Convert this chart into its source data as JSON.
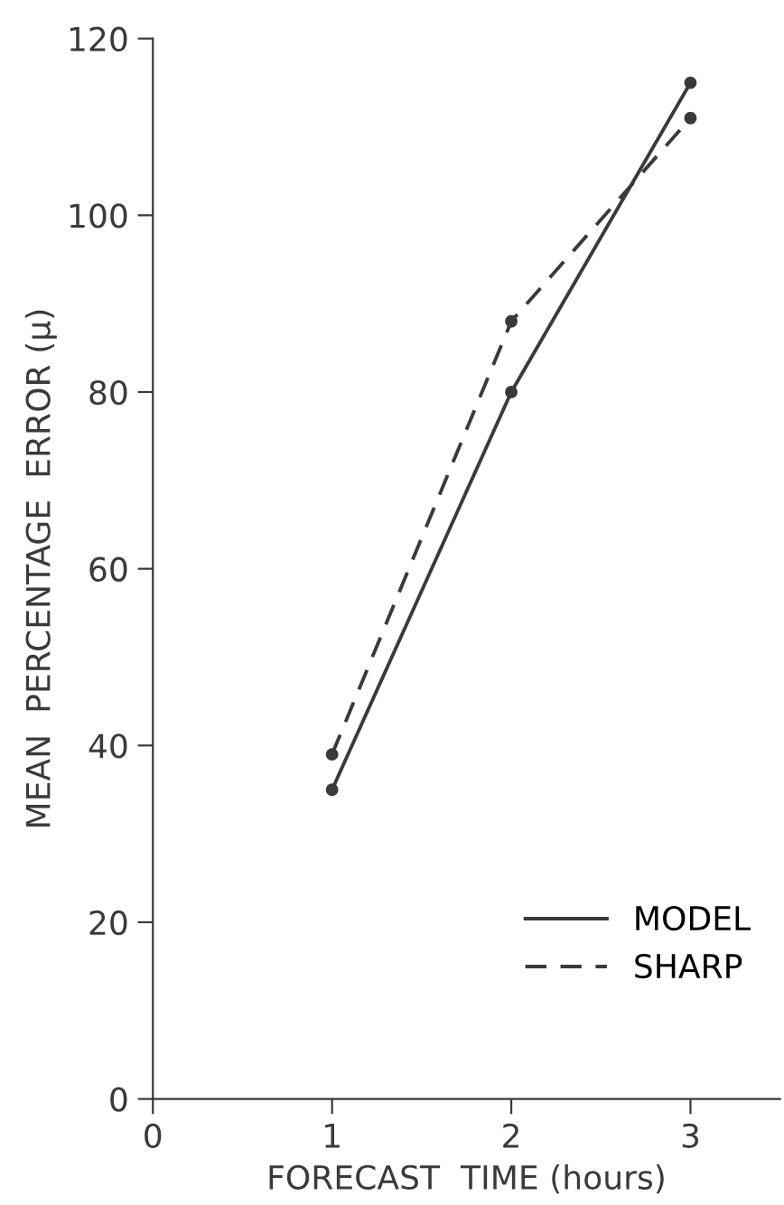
{
  "chart_data": {
    "type": "line",
    "xlabel": "FORECAST  TIME (hours)",
    "ylabel": "MEAN  PERCENTAGE  ERROR (μ)",
    "x": [
      1,
      2,
      3
    ],
    "series": [
      {
        "name": "MODEL",
        "color": "#3a3a3a",
        "values": [
          35,
          80,
          115
        ],
        "line_style": "solid"
      },
      {
        "name": "SHARP",
        "color": "#3a3a3a",
        "values": [
          39,
          88,
          111
        ],
        "line_style": "dashed"
      }
    ],
    "xlim": [
      0,
      3.5
    ],
    "xticks": [
      0,
      1,
      2,
      3
    ],
    "ylim": [
      0,
      120
    ],
    "yticks": [
      0,
      20,
      40,
      60,
      80,
      100,
      120
    ],
    "grid": false,
    "legend": "bottom right",
    "marker": "circle"
  }
}
